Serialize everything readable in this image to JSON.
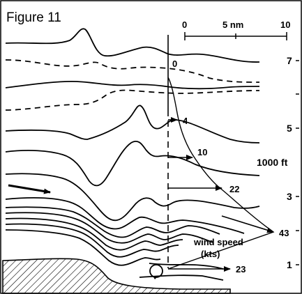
{
  "figure": {
    "title": "Figure 11"
  },
  "scale_bar": {
    "labels": [
      "0",
      "5 nm",
      "10"
    ]
  },
  "altitude_axis": {
    "tick_labels": [
      "7",
      "",
      "5",
      "1000 ft",
      "3",
      "",
      "1"
    ]
  },
  "wind_profile": {
    "speeds": [
      "0",
      "4",
      "10",
      "22",
      "43",
      "23"
    ],
    "label_line1": "wind speed",
    "label_line2": "(kts)"
  }
}
